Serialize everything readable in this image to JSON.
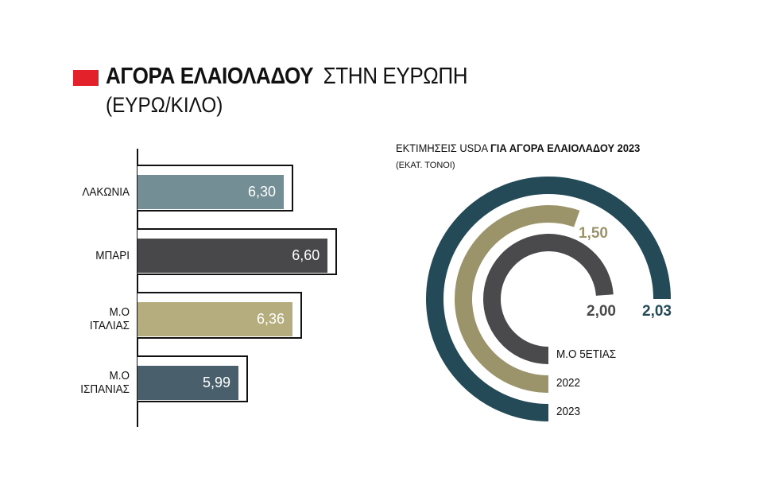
{
  "title": {
    "bold": "ΑΓΟΡΑ ΕΛΑΙΟΛΑΔΟΥ",
    "light": "ΣΤΗΝ ΕΥΡΩΠΗ",
    "subtitle": "(ΕΥΡΩ/ΚΙΛΟ)",
    "accent": "#e3212a"
  },
  "chart_data": [
    {
      "type": "bar",
      "orientation": "horizontal",
      "title": "ΑΓΟΡΑ ΕΛΑΙΟΛΑΔΟΥ ΣΤΗΝ ΕΥΡΩΠΗ (ΕΥΡΩ/ΚΙΛΟ)",
      "categories": [
        [
          "ΛΑΚΩΝΙΑ"
        ],
        [
          "ΜΠΑΡΙ"
        ],
        [
          "Μ.Ο",
          "ΙΤΑΛΙΑΣ"
        ],
        [
          "Μ.Ο",
          "ΙΣΠΑΝΙΑΣ"
        ]
      ],
      "values": [
        6.3,
        6.6,
        6.36,
        5.99
      ],
      "value_labels": [
        "6,30",
        "6,60",
        "6,36",
        "5,99"
      ],
      "colors": [
        "#738f95",
        "#48484a",
        "#b5ad7e",
        "#49606c"
      ]
    },
    {
      "type": "radial-bar",
      "title_light": "ΕΚΤΙΜΗΣΕΙΣ USDA",
      "title_bold": "ΓΙΑ ΑΓΟΡΑ ΕΛΑΙΟΛΑΔΟΥ 2023",
      "subtitle": "(ΕΚΑΤ. ΤΟΝΟΙ)",
      "series": [
        {
          "name": "2023",
          "value": 2.03,
          "label": "2,03",
          "color": "#244a57"
        },
        {
          "name": "2022",
          "value": 1.5,
          "label": "1,50",
          "color": "#9b936a"
        },
        {
          "name": "Μ.Ο 5ΕΤΙΑΣ",
          "value": 2.0,
          "label": "2,00",
          "color": "#4a4a4c"
        }
      ]
    }
  ]
}
